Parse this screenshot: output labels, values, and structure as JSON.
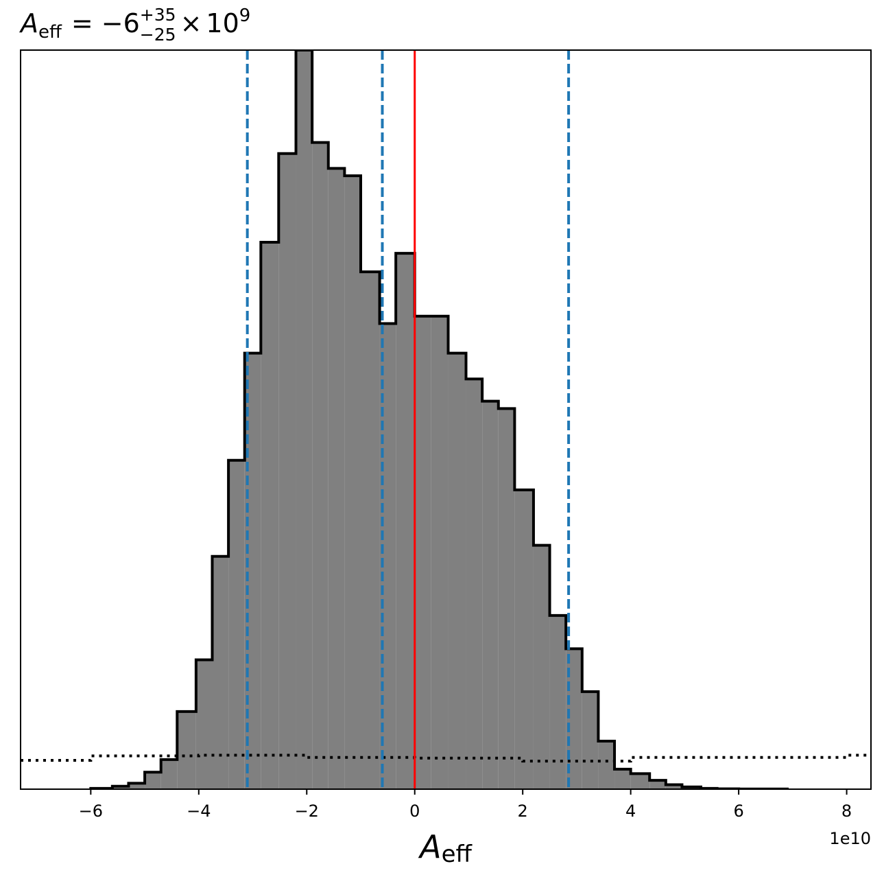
{
  "chart_data": {
    "type": "histogram",
    "title": {
      "symbol": "A",
      "symbol_sub": "eff",
      "relation": "=",
      "value": "−6",
      "upper": "+35",
      "lower": "−25",
      "times": "×",
      "base": "10",
      "exponent": "9"
    },
    "xlabel": {
      "symbol": "A",
      "sub": "eff"
    },
    "x_offset_label": "1e10",
    "xlim": [
      -7.3,
      8.45
    ],
    "ylim": [
      0,
      100
    ],
    "x_ticks": [
      -6,
      -4,
      -2,
      0,
      2,
      4,
      6,
      8
    ],
    "x_tick_labels": [
      "−6",
      "−4",
      "−2",
      "0",
      "2",
      "4",
      "6",
      "8"
    ],
    "y_ticks_shown": false,
    "bin_edges": [
      -6.0,
      -5.6,
      -5.3,
      -5.0,
      -4.7,
      -4.4,
      -4.05,
      -3.75,
      -3.45,
      -3.15,
      -2.85,
      -2.52,
      -2.2,
      -1.9,
      -1.6,
      -1.3,
      -1.0,
      -0.65,
      -0.35,
      0.0,
      0.3,
      0.62,
      0.95,
      1.25,
      1.55,
      1.85,
      2.2,
      2.5,
      2.8,
      3.1,
      3.4,
      3.7,
      4.0,
      4.35,
      4.65,
      4.95,
      5.3,
      5.6,
      6.0,
      6.9
    ],
    "counts": [
      0.1,
      0.4,
      0.8,
      2.3,
      4.0,
      10.5,
      17.5,
      31.5,
      44.5,
      59.0,
      74.0,
      86.0,
      100.0,
      87.5,
      84.0,
      83.0,
      70.0,
      63.0,
      72.5,
      64.0,
      64.0,
      59.0,
      55.5,
      52.5,
      51.5,
      40.5,
      33.0,
      23.5,
      19.0,
      13.2,
      6.5,
      2.7,
      2.1,
      1.2,
      0.6,
      0.3,
      0.1,
      0.05,
      0.02
    ],
    "histogram_fill": "#808080",
    "histogram_edge": "#000000",
    "prior": {
      "style": "dotted",
      "color": "#000000",
      "steps": [
        {
          "x0": -7.3,
          "x1": -6.0,
          "y": 3.9
        },
        {
          "x0": -6.0,
          "x1": -4.0,
          "y": 4.5
        },
        {
          "x0": -4.0,
          "x1": -2.0,
          "y": 4.6
        },
        {
          "x0": -2.0,
          "x1": 0.0,
          "y": 4.3
        },
        {
          "x0": 0.0,
          "x1": 2.0,
          "y": 4.2
        },
        {
          "x0": 2.0,
          "x1": 4.0,
          "y": 3.8
        },
        {
          "x0": 4.0,
          "x1": 8.0,
          "y": 4.3
        },
        {
          "x0": 8.0,
          "x1": 8.45,
          "y": 4.6
        }
      ]
    },
    "quantile_lines": {
      "values": [
        -3.1,
        -0.6,
        2.85
      ],
      "color": "#1f77b4",
      "style": "dashed"
    },
    "truth_line": {
      "value": 0.0,
      "color": "#ff0000"
    }
  }
}
